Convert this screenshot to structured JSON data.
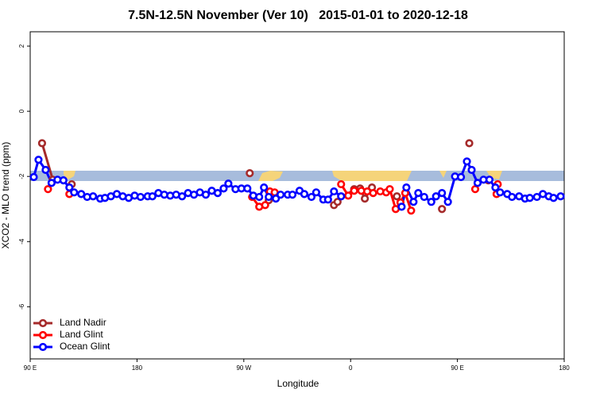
{
  "chart_data": {
    "type": "line",
    "title": "7.5N-12.5N November (Ver 10)   2015-01-01 to 2020-12-18",
    "x_label": "Longitude",
    "y_label": "XCO2 - MLO trend (ppm)",
    "xlim": [
      90,
      540
    ],
    "ylim": [
      -7.6,
      2.44
    ],
    "xticks": [
      {
        "value": 90,
        "label": "90 E"
      },
      180,
      {
        "value": 270,
        "label": "90 W"
      },
      {
        "value": 360,
        "label": "0"
      },
      {
        "value": 450,
        "label": "90 E"
      },
      {
        "value": 540,
        "label": "180"
      }
    ],
    "yticks": [
      -6,
      -4,
      -2,
      0,
      2
    ],
    "legend": "bottom-left",
    "series": [
      {
        "name": "Land Nadir",
        "color": "#a52a2a",
        "x": [
          100,
          109,
          125,
          275,
          291,
          346,
          349,
          363,
          368,
          372,
          378,
          399,
          437,
          460,
          476
        ],
        "values": [
          -0.98,
          -2.1,
          -2.24,
          -1.9,
          -2.73,
          -2.88,
          -2.78,
          -2.39,
          -2.37,
          -2.68,
          -2.34,
          -2.61,
          -3.0,
          -0.98,
          -2.12
        ]
      },
      {
        "name": "Land Glint",
        "color": "#ff0000",
        "x": [
          105,
          123,
          277,
          283,
          288,
          292,
          296,
          352,
          358,
          363,
          369,
          374,
          379,
          385,
          390,
          393,
          398,
          402,
          406,
          411,
          465,
          483,
          484
        ],
        "values": [
          -2.39,
          -2.54,
          -2.63,
          -2.93,
          -2.88,
          -2.46,
          -2.49,
          -2.24,
          -2.59,
          -2.44,
          -2.44,
          -2.46,
          -2.51,
          -2.46,
          -2.49,
          -2.39,
          -3.0,
          -2.8,
          -2.51,
          -3.05,
          -2.39,
          -2.54,
          -2.24
        ]
      },
      {
        "name": "Ocean Glint",
        "color": "#0000ff",
        "x": [
          93,
          97,
          103,
          108,
          113,
          118,
          123,
          127,
          133,
          138,
          143,
          149,
          153,
          158,
          163,
          168,
          173,
          178,
          183,
          189,
          193,
          198,
          203,
          208,
          213,
          218,
          223,
          228,
          233,
          238,
          243,
          248,
          253,
          257,
          263,
          268,
          273,
          278,
          283,
          287,
          291,
          297,
          301,
          307,
          311,
          317,
          321,
          327,
          331,
          337,
          341,
          346,
          352,
          403,
          407,
          413,
          417,
          422,
          428,
          432,
          437,
          442,
          448,
          453,
          458,
          462,
          467,
          472,
          477,
          482,
          486,
          492,
          496,
          502,
          507,
          511,
          517,
          522,
          527,
          531,
          537
        ],
        "values": [
          -2.02,
          -1.49,
          -1.8,
          -2.2,
          -2.1,
          -2.12,
          -2.34,
          -2.49,
          -2.54,
          -2.63,
          -2.61,
          -2.68,
          -2.66,
          -2.61,
          -2.54,
          -2.61,
          -2.66,
          -2.59,
          -2.63,
          -2.61,
          -2.61,
          -2.51,
          -2.56,
          -2.59,
          -2.56,
          -2.61,
          -2.51,
          -2.56,
          -2.49,
          -2.56,
          -2.44,
          -2.51,
          -2.37,
          -2.22,
          -2.39,
          -2.37,
          -2.37,
          -2.59,
          -2.63,
          -2.34,
          -2.63,
          -2.68,
          -2.56,
          -2.56,
          -2.56,
          -2.44,
          -2.54,
          -2.63,
          -2.49,
          -2.71,
          -2.71,
          -2.46,
          -2.61,
          -2.93,
          -2.34,
          -2.78,
          -2.51,
          -2.63,
          -2.78,
          -2.61,
          -2.51,
          -2.78,
          -2.0,
          -2.02,
          -1.54,
          -1.8,
          -2.2,
          -2.1,
          -2.1,
          -2.34,
          -2.49,
          -2.54,
          -2.63,
          -2.61,
          -2.68,
          -2.66,
          -2.63,
          -2.54,
          -2.61,
          -2.66,
          -2.61
        ]
      }
    ]
  }
}
